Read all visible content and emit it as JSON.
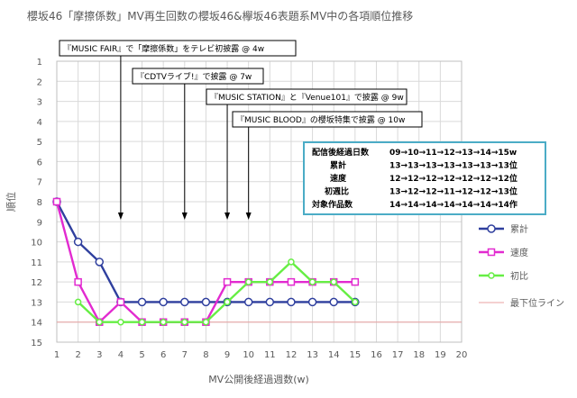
{
  "chart_data": {
    "type": "line",
    "title": "櫻坂46「摩擦係数」MV再生回数の櫻坂46&欅坂46表題系MV中の各項順位推移",
    "xlabel": "MV公開後経過週数(w)",
    "ylabel": "順位",
    "xlim": [
      1,
      20
    ],
    "ylim": [
      1,
      15
    ],
    "y_inverted": true,
    "x_ticks": [
      "1",
      "2",
      "3",
      "4",
      "5",
      "6",
      "7",
      "8",
      "9",
      "10",
      "11",
      "12",
      "13",
      "14",
      "15",
      "16",
      "17",
      "18",
      "19",
      "20"
    ],
    "y_ticks": [
      "1",
      "2",
      "3",
      "4",
      "5",
      "6",
      "7",
      "8",
      "9",
      "10",
      "11",
      "12",
      "13",
      "14",
      "15"
    ],
    "grid": true,
    "legend_position": "right",
    "series": [
      {
        "name": "累計",
        "color": "#2f3f9e",
        "x": [
          1,
          2,
          3,
          4,
          5,
          6,
          7,
          8,
          9,
          10,
          11,
          12,
          13,
          14,
          15
        ],
        "values": [
          8,
          10,
          11,
          13,
          13,
          13,
          13,
          13,
          13,
          13,
          13,
          13,
          13,
          13,
          13
        ]
      },
      {
        "name": "速度",
        "color": "#e22ad0",
        "x": [
          1,
          2,
          3,
          4,
          5,
          6,
          7,
          8,
          9,
          10,
          11,
          12,
          13,
          14,
          15
        ],
        "values": [
          8,
          12,
          14,
          13,
          14,
          14,
          14,
          14,
          12,
          12,
          12,
          12,
          12,
          12,
          12
        ]
      },
      {
        "name": "初比",
        "color": "#66ee44",
        "x": [
          2,
          3,
          4,
          5,
          6,
          7,
          8,
          9,
          10,
          11,
          12,
          13,
          14,
          15
        ],
        "values": [
          13,
          14,
          14,
          14,
          14,
          14,
          14,
          13,
          12,
          12,
          11,
          12,
          12,
          13
        ]
      }
    ],
    "reference_line": {
      "name": "最下位ライン",
      "value": 14,
      "color": "#e8a0a0"
    },
    "annotations": [
      {
        "text": "『MUSIC FAIR』で「摩擦係数」をテレビ初披露 @ 4w",
        "x": 4
      },
      {
        "text": "『CDTVライブ!』で披露 @ 7w",
        "x": 7
      },
      {
        "text": "『MUSIC STATION』と『Venue101』で披露 @ 9w",
        "x": 9
      },
      {
        "text": "『MUSIC BLOOD』の櫻坂特集で披露 @ 10w",
        "x": 10
      }
    ],
    "info_box": {
      "rows": [
        {
          "label": "配信後経過日数",
          "value": "09→10→11→12→13→14→15w"
        },
        {
          "label": "累計",
          "value": "13→13→13→13→13→13→13位"
        },
        {
          "label": "速度",
          "value": "12→12→12→12→12→12→12位"
        },
        {
          "label": "初週比",
          "value": "13→12→12→11→12→12→13位"
        },
        {
          "label": "対象作品数",
          "value": "14→14→14→14→14→14→14作"
        }
      ]
    }
  }
}
